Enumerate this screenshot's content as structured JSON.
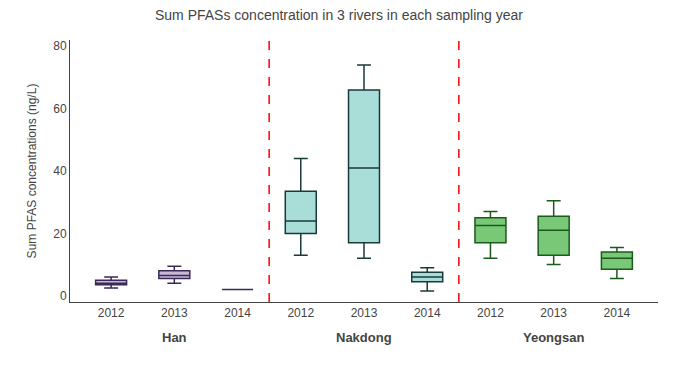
{
  "chart_data": {
    "type": "box",
    "title": "Sum PFASs concentration in 3 rivers in each sampling year",
    "ylabel": "Sum PFAS concentrations (ng/L)",
    "ylim": [
      -2,
      82
    ],
    "yticks": [
      0,
      20,
      40,
      60,
      80
    ],
    "grid": false,
    "categories": [
      "2012",
      "2013",
      "2014",
      "2012",
      "2013",
      "2014",
      "2012",
      "2013",
      "2014"
    ],
    "series": [
      {
        "name": "Han",
        "color": "#c8b8d8",
        "median_color": "#3a2a5a",
        "values": [
          {
            "whislo": 2.5,
            "q1": 3.5,
            "med": 4.0,
            "q3": 5.0,
            "whishi": 6.0
          },
          {
            "whislo": 4.0,
            "q1": 5.5,
            "med": 6.5,
            "q3": 8.0,
            "whishi": 9.5
          },
          {
            "whislo": 2.0,
            "q1": 2.0,
            "med": 2.0,
            "q3": 2.0,
            "whishi": 2.0
          }
        ]
      },
      {
        "name": "Nakdong",
        "color": "#a8ddd8",
        "median_color": "#1a3a3a",
        "values": [
          {
            "whislo": 13.0,
            "q1": 20.0,
            "med": 24.0,
            "q3": 33.5,
            "whishi": 44.0
          },
          {
            "whislo": 12.0,
            "q1": 17.0,
            "med": 41.0,
            "q3": 66.0,
            "whishi": 74.0
          },
          {
            "whislo": 1.5,
            "q1": 4.5,
            "med": 6.0,
            "q3": 7.5,
            "whishi": 9.0
          }
        ]
      },
      {
        "name": "Yeongsan",
        "color": "#78c878",
        "median_color": "#1a5a1a",
        "values": [
          {
            "whislo": 12.0,
            "q1": 17.0,
            "med": 22.5,
            "q3": 25.0,
            "whishi": 27.0
          },
          {
            "whislo": 10.0,
            "q1": 13.0,
            "med": 21.0,
            "q3": 25.5,
            "whishi": 30.5
          },
          {
            "whislo": 5.5,
            "q1": 8.5,
            "med": 12.0,
            "q3": 14.0,
            "whishi": 15.5
          }
        ]
      }
    ]
  }
}
